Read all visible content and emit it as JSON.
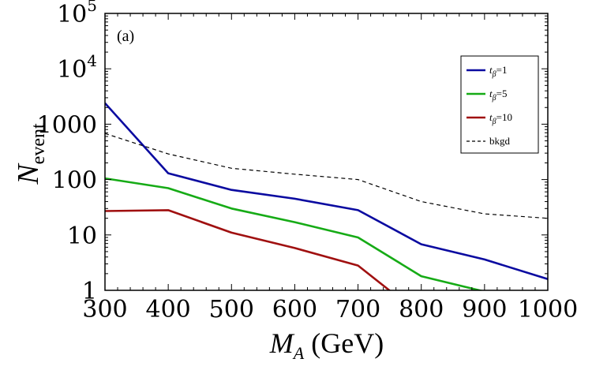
{
  "chart_data": {
    "type": "line",
    "panel_label": "(a)",
    "xlabel": {
      "main": "M",
      "sub": "A",
      "suffix": " (GeV)"
    },
    "ylabel": {
      "main": "N",
      "sub": "event"
    },
    "xlim": [
      300,
      1000
    ],
    "ylim": [
      1,
      100000
    ],
    "y_scale": "log",
    "x_ticks": [
      300,
      400,
      500,
      600,
      700,
      800,
      900,
      1000
    ],
    "y_ticks": [
      {
        "value": 1,
        "label": "1"
      },
      {
        "value": 10,
        "label": "10"
      },
      {
        "value": 100,
        "label": "100"
      },
      {
        "value": 1000,
        "label": "1000"
      },
      {
        "value": 10000,
        "base": "10",
        "exp": "4"
      },
      {
        "value": 100000,
        "base": "10",
        "exp": "5"
      }
    ],
    "legend_position": "top-right",
    "series": [
      {
        "name_main": "t",
        "name_sub": "β",
        "name_rest": "=1",
        "color": "#0a0aa0",
        "dash": "solid",
        "x": [
          300,
          400,
          500,
          600,
          700,
          800,
          900,
          1000
        ],
        "y": [
          2400,
          130,
          65,
          45,
          28,
          6.8,
          3.6,
          1.6
        ]
      },
      {
        "name_main": "t",
        "name_sub": "β",
        "name_rest": "=5",
        "color": "#16ab16",
        "dash": "solid",
        "x": [
          300,
          400,
          500,
          600,
          700,
          800,
          900,
          1000
        ],
        "y": [
          105,
          70,
          30,
          17,
          9,
          1.8,
          0.95,
          0.6
        ]
      },
      {
        "name_main": "t",
        "name_sub": "β",
        "name_rest": "=10",
        "color": "#a01010",
        "dash": "solid",
        "x": [
          300,
          400,
          500,
          600,
          700,
          800
        ],
        "y": [
          27,
          28,
          11,
          5.8,
          2.8,
          0.35
        ]
      },
      {
        "name_main": "",
        "name_sub": "",
        "name_rest": "bkgd",
        "color": "#000000",
        "dash": "dashed",
        "x": [
          300,
          400,
          500,
          600,
          700,
          800,
          900,
          1000
        ],
        "y": [
          680,
          290,
          160,
          125,
          100,
          40,
          24,
          20
        ]
      }
    ]
  }
}
